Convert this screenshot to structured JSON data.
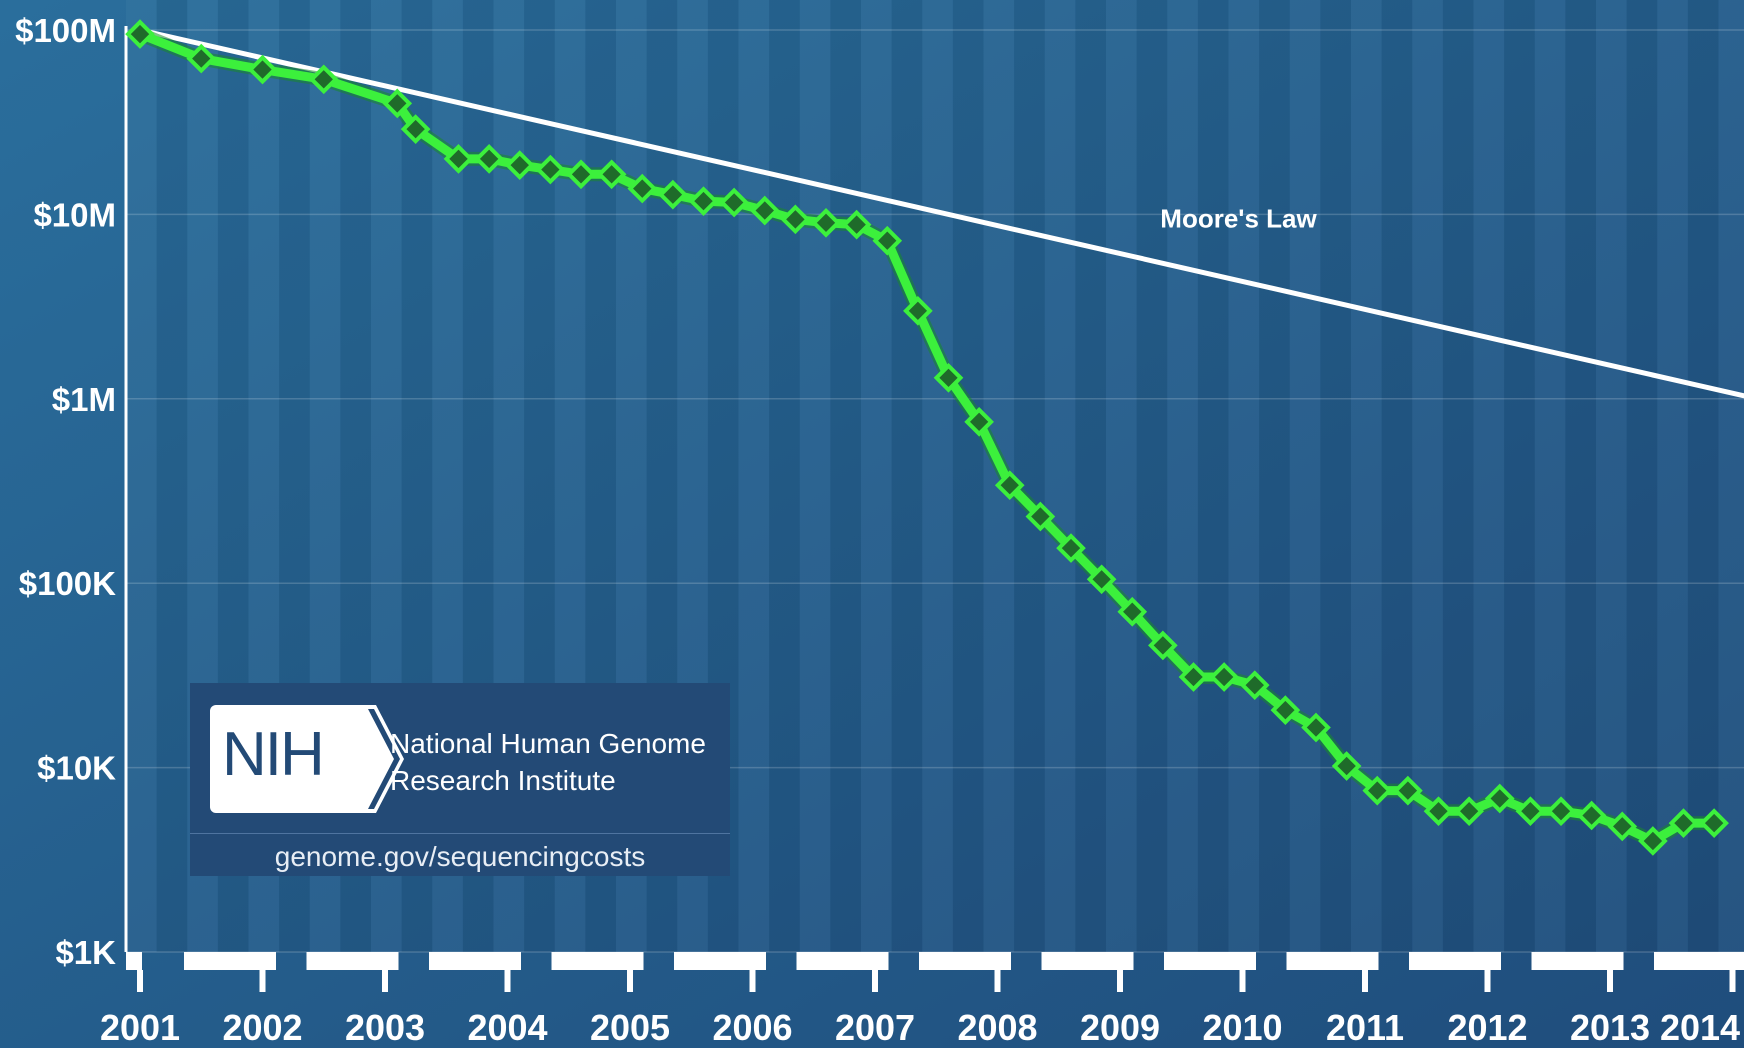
{
  "chart_data": {
    "type": "line",
    "title": "",
    "xlabel": "",
    "ylabel": "",
    "y_scale": "log",
    "ylim": [
      1000,
      100000000
    ],
    "xlim": [
      2001.0,
      2014.2
    ],
    "y_ticks": [
      {
        "value": 100000000,
        "label": "$100M"
      },
      {
        "value": 10000000,
        "label": "$10M"
      },
      {
        "value": 1000000,
        "label": "$1M"
      },
      {
        "value": 100000,
        "label": "$100K"
      },
      {
        "value": 10000,
        "label": "$10K"
      },
      {
        "value": 1000,
        "label": "$1K"
      }
    ],
    "x_ticks": [
      {
        "value": 2001,
        "label": "2001"
      },
      {
        "value": 2002,
        "label": "2002"
      },
      {
        "value": 2003,
        "label": "2003"
      },
      {
        "value": 2004,
        "label": "2004"
      },
      {
        "value": 2005,
        "label": "2005"
      },
      {
        "value": 2006,
        "label": "2006"
      },
      {
        "value": 2007,
        "label": "2007"
      },
      {
        "value": 2008,
        "label": "2008"
      },
      {
        "value": 2009,
        "label": "2009"
      },
      {
        "value": 2010,
        "label": "2010"
      },
      {
        "value": 2011,
        "label": "2011"
      },
      {
        "value": 2012,
        "label": "2012"
      },
      {
        "value": 2013,
        "label": "2013"
      },
      {
        "value": 2014,
        "label": "2014"
      }
    ],
    "grid": "horizontal",
    "series": [
      {
        "name": "",
        "color": "#3cf03c",
        "marker": "diamond",
        "x": [
          2001.0,
          2001.5,
          2002.0,
          2002.5,
          2003.1,
          2003.25,
          2003.6,
          2003.85,
          2004.1,
          2004.35,
          2004.6,
          2004.85,
          2005.1,
          2005.35,
          2005.6,
          2005.85,
          2006.1,
          2006.35,
          2006.6,
          2006.85,
          2007.1,
          2007.35,
          2007.6,
          2007.85,
          2008.1,
          2008.35,
          2008.6,
          2008.85,
          2009.1,
          2009.35,
          2009.6,
          2009.85,
          2010.1,
          2010.35,
          2010.6,
          2010.85,
          2011.1,
          2011.35,
          2011.6,
          2011.85,
          2012.1,
          2012.35,
          2012.6,
          2012.85,
          2013.1,
          2013.35,
          2013.6,
          2013.85
        ],
        "y": [
          95000000,
          70000000,
          61000000,
          54000000,
          40000000,
          29000000,
          20000000,
          20000000,
          18500000,
          17500000,
          16500000,
          16500000,
          13800000,
          12800000,
          11800000,
          11600000,
          10500000,
          9400000,
          9000000,
          8800000,
          7200000,
          3000000,
          1300000,
          750000,
          340000,
          230000,
          155000,
          105000,
          70000,
          46000,
          31000,
          31000,
          28000,
          20500,
          16500,
          10200,
          7500,
          7500,
          5800,
          5800,
          6800,
          5800,
          5800,
          5500,
          4800,
          4000,
          5000,
          5000
        ]
      },
      {
        "name": "Moore's Law",
        "color": "#ffffff",
        "x": [
          2001.0,
          2014.2
        ],
        "y": [
          100000000,
          1000000
        ]
      }
    ],
    "annotations": [
      {
        "text": "Moore's Law",
        "x": 2010.0,
        "y": 9500000
      }
    ]
  },
  "logo": {
    "badge_text": "NIH",
    "org_name_line1": "National Human Genome",
    "org_name_line2": "Research Institute",
    "url": "genome.gov/sequencingcosts"
  },
  "colors": {
    "background": "#1d4f7a",
    "band_light": "#2a6a98",
    "band_dark": "#1a4772",
    "series_green": "#3cf03c",
    "marker_fill": "#1f6b2a",
    "moores_law": "#ffffff"
  }
}
